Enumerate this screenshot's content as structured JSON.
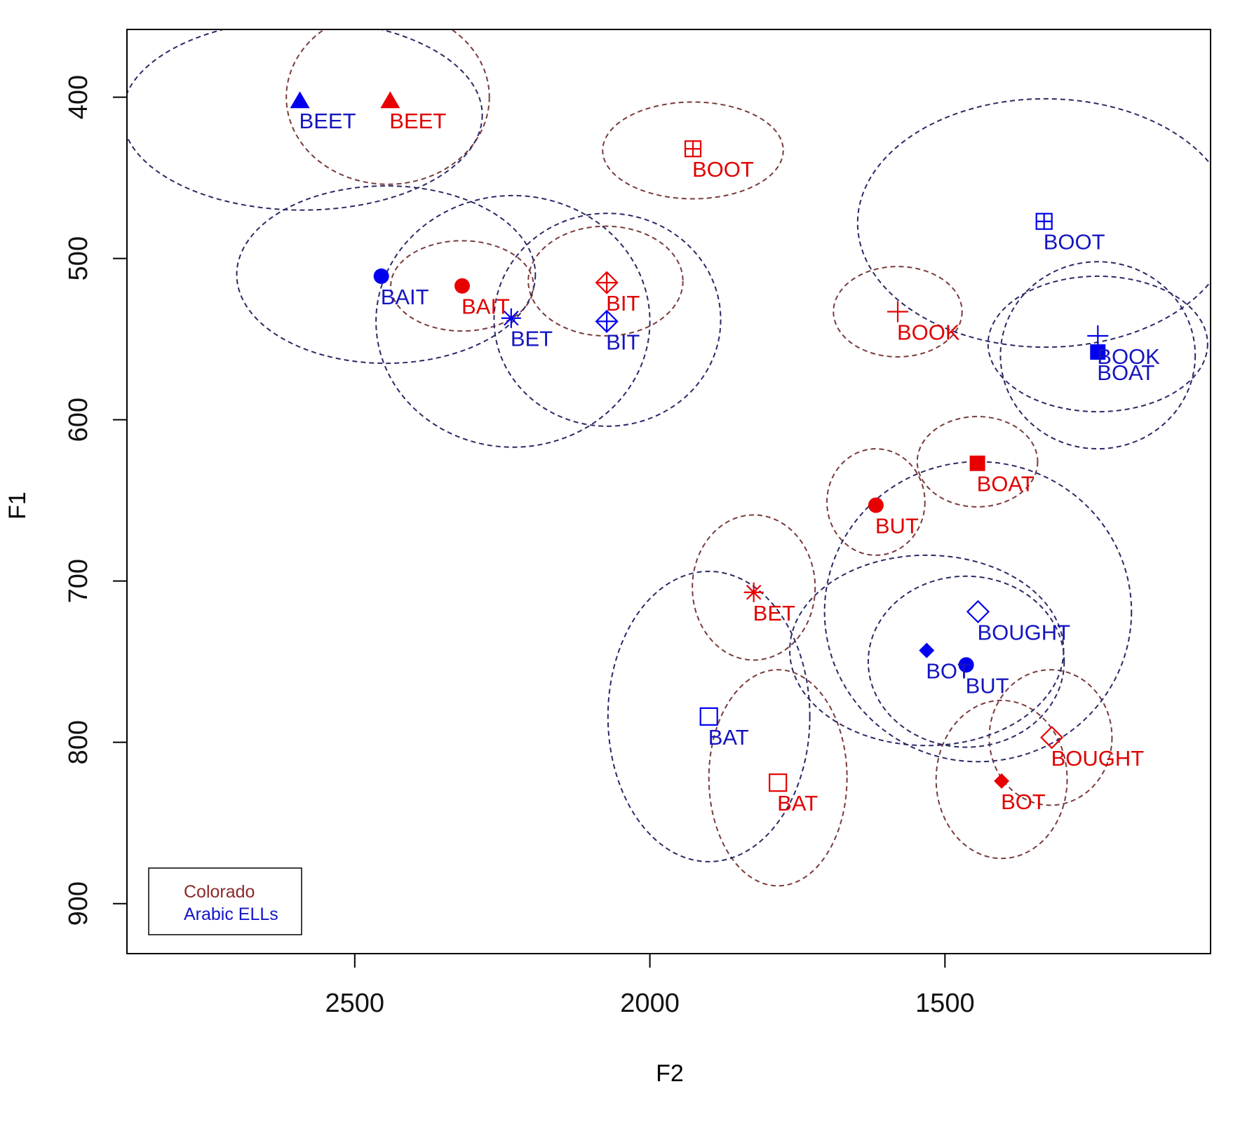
{
  "colors": {
    "colorado_text": "#8b2a2a",
    "arabic_text": "#1414c8",
    "colorado_mark": "#e80000",
    "arabic_mark": "#0000ee",
    "colorado_ellipse": "#7a3a3a",
    "arabic_ellipse": "#2a2a66",
    "frame": "#000000"
  },
  "chart_data": {
    "type": "scatter",
    "title": "",
    "xlabel": "F2",
    "ylabel": "F1",
    "x_reversed": true,
    "y_reversed": true,
    "xlim": [
      2886,
      1050
    ],
    "ylim": [
      931,
      358
    ],
    "x_ticks": [
      2500,
      2000,
      1500
    ],
    "y_ticks": [
      400,
      500,
      600,
      700,
      800,
      900
    ],
    "grid": false,
    "legend": {
      "position": "bottom-left",
      "entries": [
        {
          "label": "Colorado",
          "color": "#8b2a2a"
        },
        {
          "label": "Arabic ELLs",
          "color": "#1414c8"
        }
      ]
    },
    "series": [
      {
        "name": "Colorado",
        "points": [
          {
            "label": "BEET",
            "F2": 2440,
            "F1": 402,
            "symbol": "triangle"
          },
          {
            "label": "BOOT",
            "F2": 1927,
            "F1": 432,
            "symbol": "boxplus"
          },
          {
            "label": "BAIT",
            "F2": 2318,
            "F1": 517,
            "symbol": "circle"
          },
          {
            "label": "BIT",
            "F2": 2073,
            "F1": 515,
            "symbol": "diamondplus"
          },
          {
            "label": "BOOK",
            "F2": 1580,
            "F1": 533,
            "symbol": "plus"
          },
          {
            "label": "BOAT",
            "F2": 1445,
            "F1": 627,
            "symbol": "square"
          },
          {
            "label": "BUT",
            "F2": 1617,
            "F1": 653,
            "symbol": "circle"
          },
          {
            "label": "BET",
            "F2": 1824,
            "F1": 707,
            "symbol": "star"
          },
          {
            "label": "BOUGHT",
            "F2": 1319,
            "F1": 797,
            "symbol": "diamond-open"
          },
          {
            "label": "BOT",
            "F2": 1404,
            "F1": 824,
            "symbol": "diamond"
          },
          {
            "label": "BAT",
            "F2": 1783,
            "F1": 825,
            "symbol": "square-open"
          }
        ],
        "ellipses": [
          {
            "label": "BEET",
            "cx": 2444,
            "cy": 400,
            "rx": 172,
            "ry": 54
          },
          {
            "label": "BOOT",
            "cx": 1927,
            "cy": 433,
            "rx": 153,
            "ry": 30
          },
          {
            "label": "BAIT",
            "cx": 2318,
            "cy": 517,
            "rx": 121,
            "ry": 28
          },
          {
            "label": "BIT",
            "cx": 2075,
            "cy": 514,
            "rx": 131,
            "ry": 34
          },
          {
            "label": "BOOK",
            "cx": 1580,
            "cy": 533,
            "rx": 109,
            "ry": 28
          },
          {
            "label": "BOAT",
            "cx": 1445,
            "cy": 626,
            "rx": 102,
            "ry": 28
          },
          {
            "label": "BUT",
            "cx": 1617,
            "cy": 651,
            "rx": 83,
            "ry": 33
          },
          {
            "label": "BET",
            "cx": 1824,
            "cy": 704,
            "rx": 104,
            "ry": 45
          },
          {
            "label": "BOUGHT",
            "cx": 1321,
            "cy": 797,
            "rx": 104,
            "ry": 42
          },
          {
            "label": "BOT",
            "cx": 1404,
            "cy": 823,
            "rx": 111,
            "ry": 49
          },
          {
            "label": "BAT",
            "cx": 1783,
            "cy": 822,
            "rx": 117,
            "ry": 67
          }
        ]
      },
      {
        "name": "Arabic ELLs",
        "points": [
          {
            "label": "BEET",
            "F2": 2593,
            "F1": 402,
            "symbol": "triangle"
          },
          {
            "label": "BOOT",
            "F2": 1332,
            "F1": 477,
            "symbol": "boxplus"
          },
          {
            "label": "BAIT",
            "F2": 2455,
            "F1": 511,
            "symbol": "circle"
          },
          {
            "label": "BET",
            "F2": 2235,
            "F1": 537,
            "symbol": "star"
          },
          {
            "label": "BIT",
            "F2": 2073,
            "F1": 539,
            "symbol": "diamondplus"
          },
          {
            "label": "BOOK",
            "F2": 1241,
            "F1": 548,
            "symbol": "plus"
          },
          {
            "label": "BOAT",
            "F2": 1241,
            "F1": 558,
            "symbol": "square"
          },
          {
            "label": "BOUGHT",
            "F2": 1444,
            "F1": 719,
            "symbol": "diamond-open"
          },
          {
            "label": "BOT",
            "F2": 1531,
            "F1": 743,
            "symbol": "diamond"
          },
          {
            "label": "BUT",
            "F2": 1464,
            "F1": 752,
            "symbol": "circle"
          },
          {
            "label": "BAT",
            "F2": 1900,
            "F1": 784,
            "symbol": "square-open"
          }
        ],
        "ellipses": [
          {
            "label": "BEET",
            "cx": 2589,
            "cy": 411,
            "rx": 305,
            "ry": 59
          },
          {
            "label": "BAIT",
            "cx": 2447,
            "cy": 510,
            "rx": 253,
            "ry": 55
          },
          {
            "label": "BET",
            "cx": 2232,
            "cy": 539,
            "rx": 232,
            "ry": 78
          },
          {
            "label": "BIT",
            "cx": 2072,
            "cy": 538,
            "rx": 192,
            "ry": 66
          },
          {
            "label": "BOOT",
            "cx": 1330,
            "cy": 478,
            "rx": 318,
            "ry": 77
          },
          {
            "label": "BOOK",
            "cx": 1241,
            "cy": 553,
            "rx": 186,
            "ry": 42
          },
          {
            "label": "BOAT",
            "cx": 1241,
            "cy": 560,
            "rx": 165,
            "ry": 58
          },
          {
            "label": "BOUGHT",
            "cx": 1444,
            "cy": 719,
            "rx": 260,
            "ry": 93
          },
          {
            "label": "BOT",
            "cx": 1531,
            "cy": 743,
            "rx": 232,
            "ry": 59
          },
          {
            "label": "BUT",
            "cx": 1464,
            "cy": 750,
            "rx": 166,
            "ry": 53
          },
          {
            "label": "BAT",
            "cx": 1900,
            "cy": 784,
            "rx": 171,
            "ry": 90
          }
        ]
      }
    ]
  }
}
